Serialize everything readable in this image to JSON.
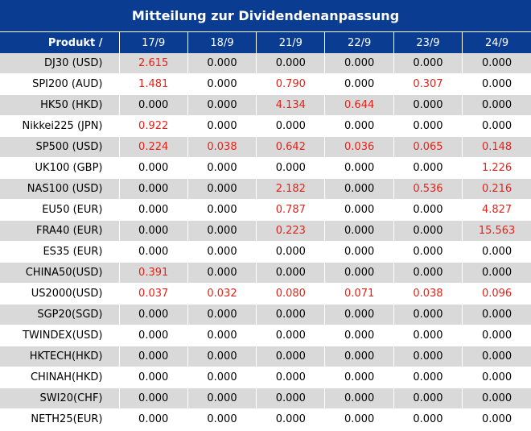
{
  "title": "Mitteilung zur Dividendenanpassung",
  "header": [
    "Produkt /",
    "17/9",
    "18/9",
    "21/9",
    "22/9",
    "23/9",
    "24/9"
  ],
  "rows": [
    {
      "product": "DJ30 (USD)",
      "values": [
        "2.615",
        "0.000",
        "0.000",
        "0.000",
        "0.000",
        "0.000"
      ]
    },
    {
      "product": "SPI200 (AUD)",
      "values": [
        "1.481",
        "0.000",
        "0.790",
        "0.000",
        "0.307",
        "0.000"
      ]
    },
    {
      "product": "HK50 (HKD)",
      "values": [
        "0.000",
        "0.000",
        "4.134",
        "0.644",
        "0.000",
        "0.000"
      ]
    },
    {
      "product": "Nikkei225 (JPN)",
      "values": [
        "0.922",
        "0.000",
        "0.000",
        "0.000",
        "0.000",
        "0.000"
      ]
    },
    {
      "product": "SP500 (USD)",
      "values": [
        "0.224",
        "0.038",
        "0.642",
        "0.036",
        "0.065",
        "0.148"
      ]
    },
    {
      "product": "UK100 (GBP)",
      "values": [
        "0.000",
        "0.000",
        "0.000",
        "0.000",
        "0.000",
        "1.226"
      ]
    },
    {
      "product": "NAS100 (USD)",
      "values": [
        "0.000",
        "0.000",
        "2.182",
        "0.000",
        "0.536",
        "0.216"
      ]
    },
    {
      "product": "EU50 (EUR)",
      "values": [
        "0.000",
        "0.000",
        "0.787",
        "0.000",
        "0.000",
        "4.827"
      ]
    },
    {
      "product": "FRA40 (EUR)",
      "values": [
        "0.000",
        "0.000",
        "0.223",
        "0.000",
        "0.000",
        "15.563"
      ]
    },
    {
      "product": "ES35 (EUR)",
      "values": [
        "0.000",
        "0.000",
        "0.000",
        "0.000",
        "0.000",
        "0.000"
      ]
    },
    {
      "product": "CHINA50(USD)",
      "values": [
        "0.391",
        "0.000",
        "0.000",
        "0.000",
        "0.000",
        "0.000"
      ]
    },
    {
      "product": "US2000(USD)",
      "values": [
        "0.037",
        "0.032",
        "0.080",
        "0.071",
        "0.038",
        "0.096"
      ]
    },
    {
      "product": "SGP20(SGD)",
      "values": [
        "0.000",
        "0.000",
        "0.000",
        "0.000",
        "0.000",
        "0.000"
      ]
    },
    {
      "product": "TWINDEX(USD)",
      "values": [
        "0.000",
        "0.000",
        "0.000",
        "0.000",
        "0.000",
        "0.000"
      ]
    },
    {
      "product": "HKTECH(HKD)",
      "values": [
        "0.000",
        "0.000",
        "0.000",
        "0.000",
        "0.000",
        "0.000"
      ]
    },
    {
      "product": "CHINAH(HKD)",
      "values": [
        "0.000",
        "0.000",
        "0.000",
        "0.000",
        "0.000",
        "0.000"
      ]
    },
    {
      "product": "SWI20(CHF)",
      "values": [
        "0.000",
        "0.000",
        "0.000",
        "0.000",
        "0.000",
        "0.000"
      ]
    },
    {
      "product": "NETH25(EUR)",
      "values": [
        "0.000",
        "0.000",
        "0.000",
        "0.000",
        "0.000",
        "0.000"
      ]
    }
  ],
  "colors": {
    "header_bg": "#0a3d91",
    "stripe": "#d9d9d9",
    "positive": "#e2231a"
  }
}
